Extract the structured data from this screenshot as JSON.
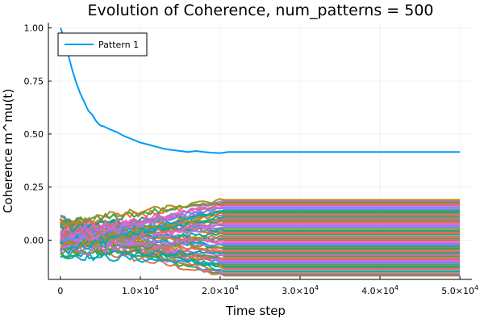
{
  "chart_data": {
    "type": "line",
    "title": "Evolution of Coherence, num_patterns = 500",
    "xlabel": "Time step",
    "ylabel": "Coherence m^mu(t)",
    "xlim": [
      -1500,
      51500
    ],
    "ylim": [
      -0.185,
      1.025
    ],
    "x_ticks": [
      0,
      10000,
      20000,
      30000,
      40000,
      50000
    ],
    "x_tick_labels": [
      {
        "mantissa": "0",
        "exp": ""
      },
      {
        "mantissa": "1.0×10",
        "exp": "4"
      },
      {
        "mantissa": "2.0×10",
        "exp": "4"
      },
      {
        "mantissa": "3.0×10",
        "exp": "4"
      },
      {
        "mantissa": "4.0×10",
        "exp": "4"
      },
      {
        "mantissa": "5.0×10",
        "exp": "4"
      }
    ],
    "y_ticks": [
      0.0,
      0.25,
      0.5,
      0.75,
      1.0
    ],
    "y_tick_labels": [
      "0.00",
      "0.25",
      "0.50",
      "0.75",
      "1.00"
    ],
    "grid": true,
    "legend": {
      "position": "top-left",
      "entries": [
        "Pattern 1"
      ]
    },
    "series": [
      {
        "name": "Pattern 1",
        "color": "#009AFA",
        "x": [
          0,
          500,
          1000,
          1500,
          2000,
          2500,
          3000,
          3500,
          4000,
          4500,
          5000,
          5500,
          6000,
          7000,
          8000,
          9000,
          10000,
          11000,
          12000,
          13000,
          14000,
          15000,
          16000,
          17000,
          18000,
          19000,
          20000,
          21000,
          50000
        ],
        "values": [
          1.0,
          0.95,
          0.87,
          0.8,
          0.74,
          0.69,
          0.65,
          0.61,
          0.59,
          0.56,
          0.54,
          0.535,
          0.525,
          0.51,
          0.49,
          0.475,
          0.46,
          0.45,
          0.44,
          0.43,
          0.425,
          0.42,
          0.415,
          0.42,
          0.415,
          0.412,
          0.41,
          0.415,
          0.415
        ]
      }
    ],
    "background_series": {
      "count": 60,
      "palette": [
        "#E36F47",
        "#3EA44E",
        "#C371D2",
        "#AC8E18",
        "#00A9AD",
        "#ED5E93",
        "#C68225",
        "#00A98D",
        "#8E971D",
        "#00A9CD",
        "#9B7FE9",
        "#618DF6",
        "#F061DD",
        "#DD6483"
      ],
      "converge_x": 20500,
      "end_x": 50000,
      "value_range": [
        -0.17,
        0.195
      ],
      "start_range": [
        -0.07,
        0.1
      ]
    }
  }
}
